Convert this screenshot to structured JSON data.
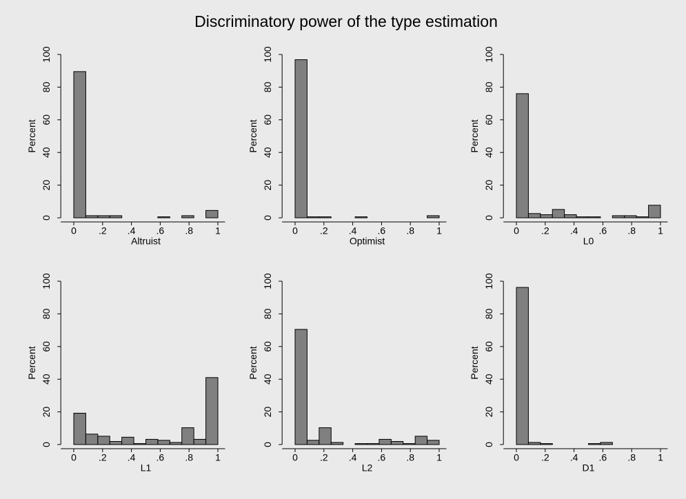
{
  "title": "Discriminatory power of the type estimation",
  "chart_data": [
    {
      "type": "histogram",
      "x_label": "Altruist",
      "y_label": "Percent",
      "color": "#808080",
      "bins": [
        0,
        0.0833,
        0.1667,
        0.25,
        0.3333,
        0.4167,
        0.5,
        0.5833,
        0.6667,
        0.75,
        0.8333,
        0.9167,
        1
      ],
      "values": [
        89.5,
        1.3,
        1.3,
        1.3,
        0,
        0,
        0,
        0.6,
        0,
        1.3,
        0,
        4.5
      ],
      "xlim": [
        -0.09,
        1.05
      ],
      "ylim": [
        0,
        100
      ],
      "xticks": [
        0,
        {
          "value": 0.2,
          "label": ".2"
        },
        {
          "value": 0.4,
          "label": ".4"
        },
        {
          "value": 0.6,
          "label": ".6"
        },
        {
          "value": 0.8,
          "label": ".8"
        },
        1
      ],
      "yticks": [
        0,
        20,
        40,
        60,
        80,
        100
      ]
    },
    {
      "type": "histogram",
      "x_label": "Optimist",
      "y_label": "Percent",
      "color": "#808080",
      "bins": [
        0,
        0.0833,
        0.1667,
        0.25,
        0.3333,
        0.4167,
        0.5,
        0.5833,
        0.6667,
        0.75,
        0.8333,
        0.9167,
        1
      ],
      "values": [
        96.8,
        0.6,
        0.6,
        0,
        0,
        0.6,
        0,
        0,
        0,
        0,
        0,
        1.3
      ],
      "xlim": [
        -0.09,
        1.05
      ],
      "ylim": [
        0,
        100
      ],
      "xticks": [
        0,
        {
          "value": 0.2,
          "label": ".2"
        },
        {
          "value": 0.4,
          "label": ".4"
        },
        {
          "value": 0.6,
          "label": ".6"
        },
        {
          "value": 0.8,
          "label": ".8"
        },
        1
      ],
      "yticks": [
        0,
        20,
        40,
        60,
        80,
        100
      ]
    },
    {
      "type": "histogram",
      "x_label": "L0",
      "y_label": "Percent",
      "color": "#808080",
      "bins": [
        0,
        0.0833,
        0.1667,
        0.25,
        0.3333,
        0.4167,
        0.5,
        0.5833,
        0.6667,
        0.75,
        0.8333,
        0.9167,
        1
      ],
      "values": [
        76,
        2.6,
        1.9,
        5.1,
        1.9,
        0.6,
        0.6,
        0,
        1.3,
        1.3,
        0.6,
        7.7
      ],
      "xlim": [
        -0.09,
        1.05
      ],
      "ylim": [
        0,
        100
      ],
      "xticks": [
        0,
        {
          "value": 0.2,
          "label": ".2"
        },
        {
          "value": 0.4,
          "label": ".4"
        },
        {
          "value": 0.6,
          "label": ".6"
        },
        {
          "value": 0.8,
          "label": ".8"
        },
        1
      ],
      "yticks": [
        0,
        20,
        40,
        60,
        80,
        100
      ]
    },
    {
      "type": "histogram",
      "x_label": "L1",
      "y_label": "Percent",
      "color": "#808080",
      "bins": [
        0,
        0.0833,
        0.1667,
        0.25,
        0.3333,
        0.4167,
        0.5,
        0.5833,
        0.6667,
        0.75,
        0.8333,
        0.9167,
        1
      ],
      "values": [
        19.2,
        6.4,
        5.1,
        1.9,
        4.5,
        0.6,
        3.2,
        2.6,
        1.3,
        10.3,
        3.2,
        41
      ],
      "xlim": [
        -0.09,
        1.05
      ],
      "ylim": [
        0,
        100
      ],
      "xticks": [
        0,
        {
          "value": 0.2,
          "label": ".2"
        },
        {
          "value": 0.4,
          "label": ".4"
        },
        {
          "value": 0.6,
          "label": ".6"
        },
        {
          "value": 0.8,
          "label": ".8"
        },
        1
      ],
      "yticks": [
        0,
        20,
        40,
        60,
        80,
        100
      ]
    },
    {
      "type": "histogram",
      "x_label": "L2",
      "y_label": "Percent",
      "color": "#808080",
      "bins": [
        0,
        0.0833,
        0.1667,
        0.25,
        0.3333,
        0.4167,
        0.5,
        0.5833,
        0.6667,
        0.75,
        0.8333,
        0.9167,
        1
      ],
      "values": [
        70.5,
        2.6,
        10.3,
        1.3,
        0,
        0.6,
        0.6,
        3.2,
        1.9,
        0.6,
        5.1,
        2.6
      ],
      "xlim": [
        -0.09,
        1.05
      ],
      "ylim": [
        0,
        100
      ],
      "xticks": [
        0,
        {
          "value": 0.2,
          "label": ".2"
        },
        {
          "value": 0.4,
          "label": ".4"
        },
        {
          "value": 0.6,
          "label": ".6"
        },
        {
          "value": 0.8,
          "label": ".8"
        },
        1
      ],
      "yticks": [
        0,
        20,
        40,
        60,
        80,
        100
      ]
    },
    {
      "type": "histogram",
      "x_label": "D1",
      "y_label": "Percent",
      "color": "#808080",
      "bins": [
        0,
        0.0833,
        0.1667,
        0.25,
        0.3333,
        0.4167,
        0.5,
        0.5833,
        0.6667,
        0.75,
        0.8333,
        0.9167,
        1
      ],
      "values": [
        96.2,
        1.3,
        0.6,
        0,
        0,
        0,
        0.6,
        1.3,
        0,
        0,
        0,
        0
      ],
      "xlim": [
        -0.09,
        1.05
      ],
      "ylim": [
        0,
        100
      ],
      "xticks": [
        0,
        {
          "value": 0.2,
          "label": ".2"
        },
        {
          "value": 0.4,
          "label": ".4"
        },
        {
          "value": 0.6,
          "label": ".6"
        },
        {
          "value": 0.8,
          "label": ".8"
        },
        1
      ],
      "yticks": [
        0,
        20,
        40,
        60,
        80,
        100
      ]
    }
  ]
}
